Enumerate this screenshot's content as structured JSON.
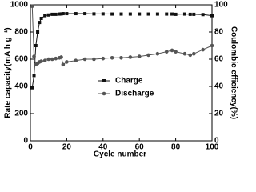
{
  "chart_data": {
    "type": "scatter",
    "x_label": "Cycle number",
    "y_label": "Rate capacity(mA h g⁻¹)",
    "y2_label": "Coulombic efficiency(%)",
    "x": [
      1,
      2,
      3,
      4,
      5,
      6,
      8,
      10,
      12,
      14,
      16,
      17,
      18,
      20,
      25,
      30,
      35,
      40,
      45,
      50,
      55,
      60,
      65,
      70,
      75,
      78,
      80,
      85,
      88,
      90,
      95,
      100
    ],
    "series": [
      {
        "name": "Charge",
        "color": "#111111",
        "marker": "square",
        "values": [
          390,
          480,
          700,
          800,
          870,
          900,
          920,
          925,
          930,
          930,
          932,
          933,
          935,
          935,
          935,
          935,
          933,
          933,
          932,
          932,
          932,
          932,
          932,
          932,
          932,
          932,
          930,
          932,
          930,
          930,
          928,
          920
        ]
      },
      {
        "name": "Discharge",
        "color": "#555555",
        "marker": "circle",
        "values": [
          990,
          620,
          560,
          570,
          580,
          585,
          590,
          600,
          600,
          605,
          610,
          615,
          560,
          580,
          590,
          600,
          600,
          605,
          610,
          610,
          615,
          620,
          630,
          640,
          655,
          665,
          655,
          640,
          630,
          640,
          670,
          700
        ]
      }
    ],
    "xlim": [
      0,
      100
    ],
    "xticks": [
      0,
      20,
      40,
      60,
      80,
      100
    ],
    "ylim": [
      0,
      1000
    ],
    "yticks": [
      0,
      200,
      400,
      600,
      800,
      1000
    ],
    "y2lim": [
      0,
      100
    ],
    "y2ticks": [
      0,
      20,
      40,
      60,
      80,
      100
    ],
    "legend": "center"
  }
}
